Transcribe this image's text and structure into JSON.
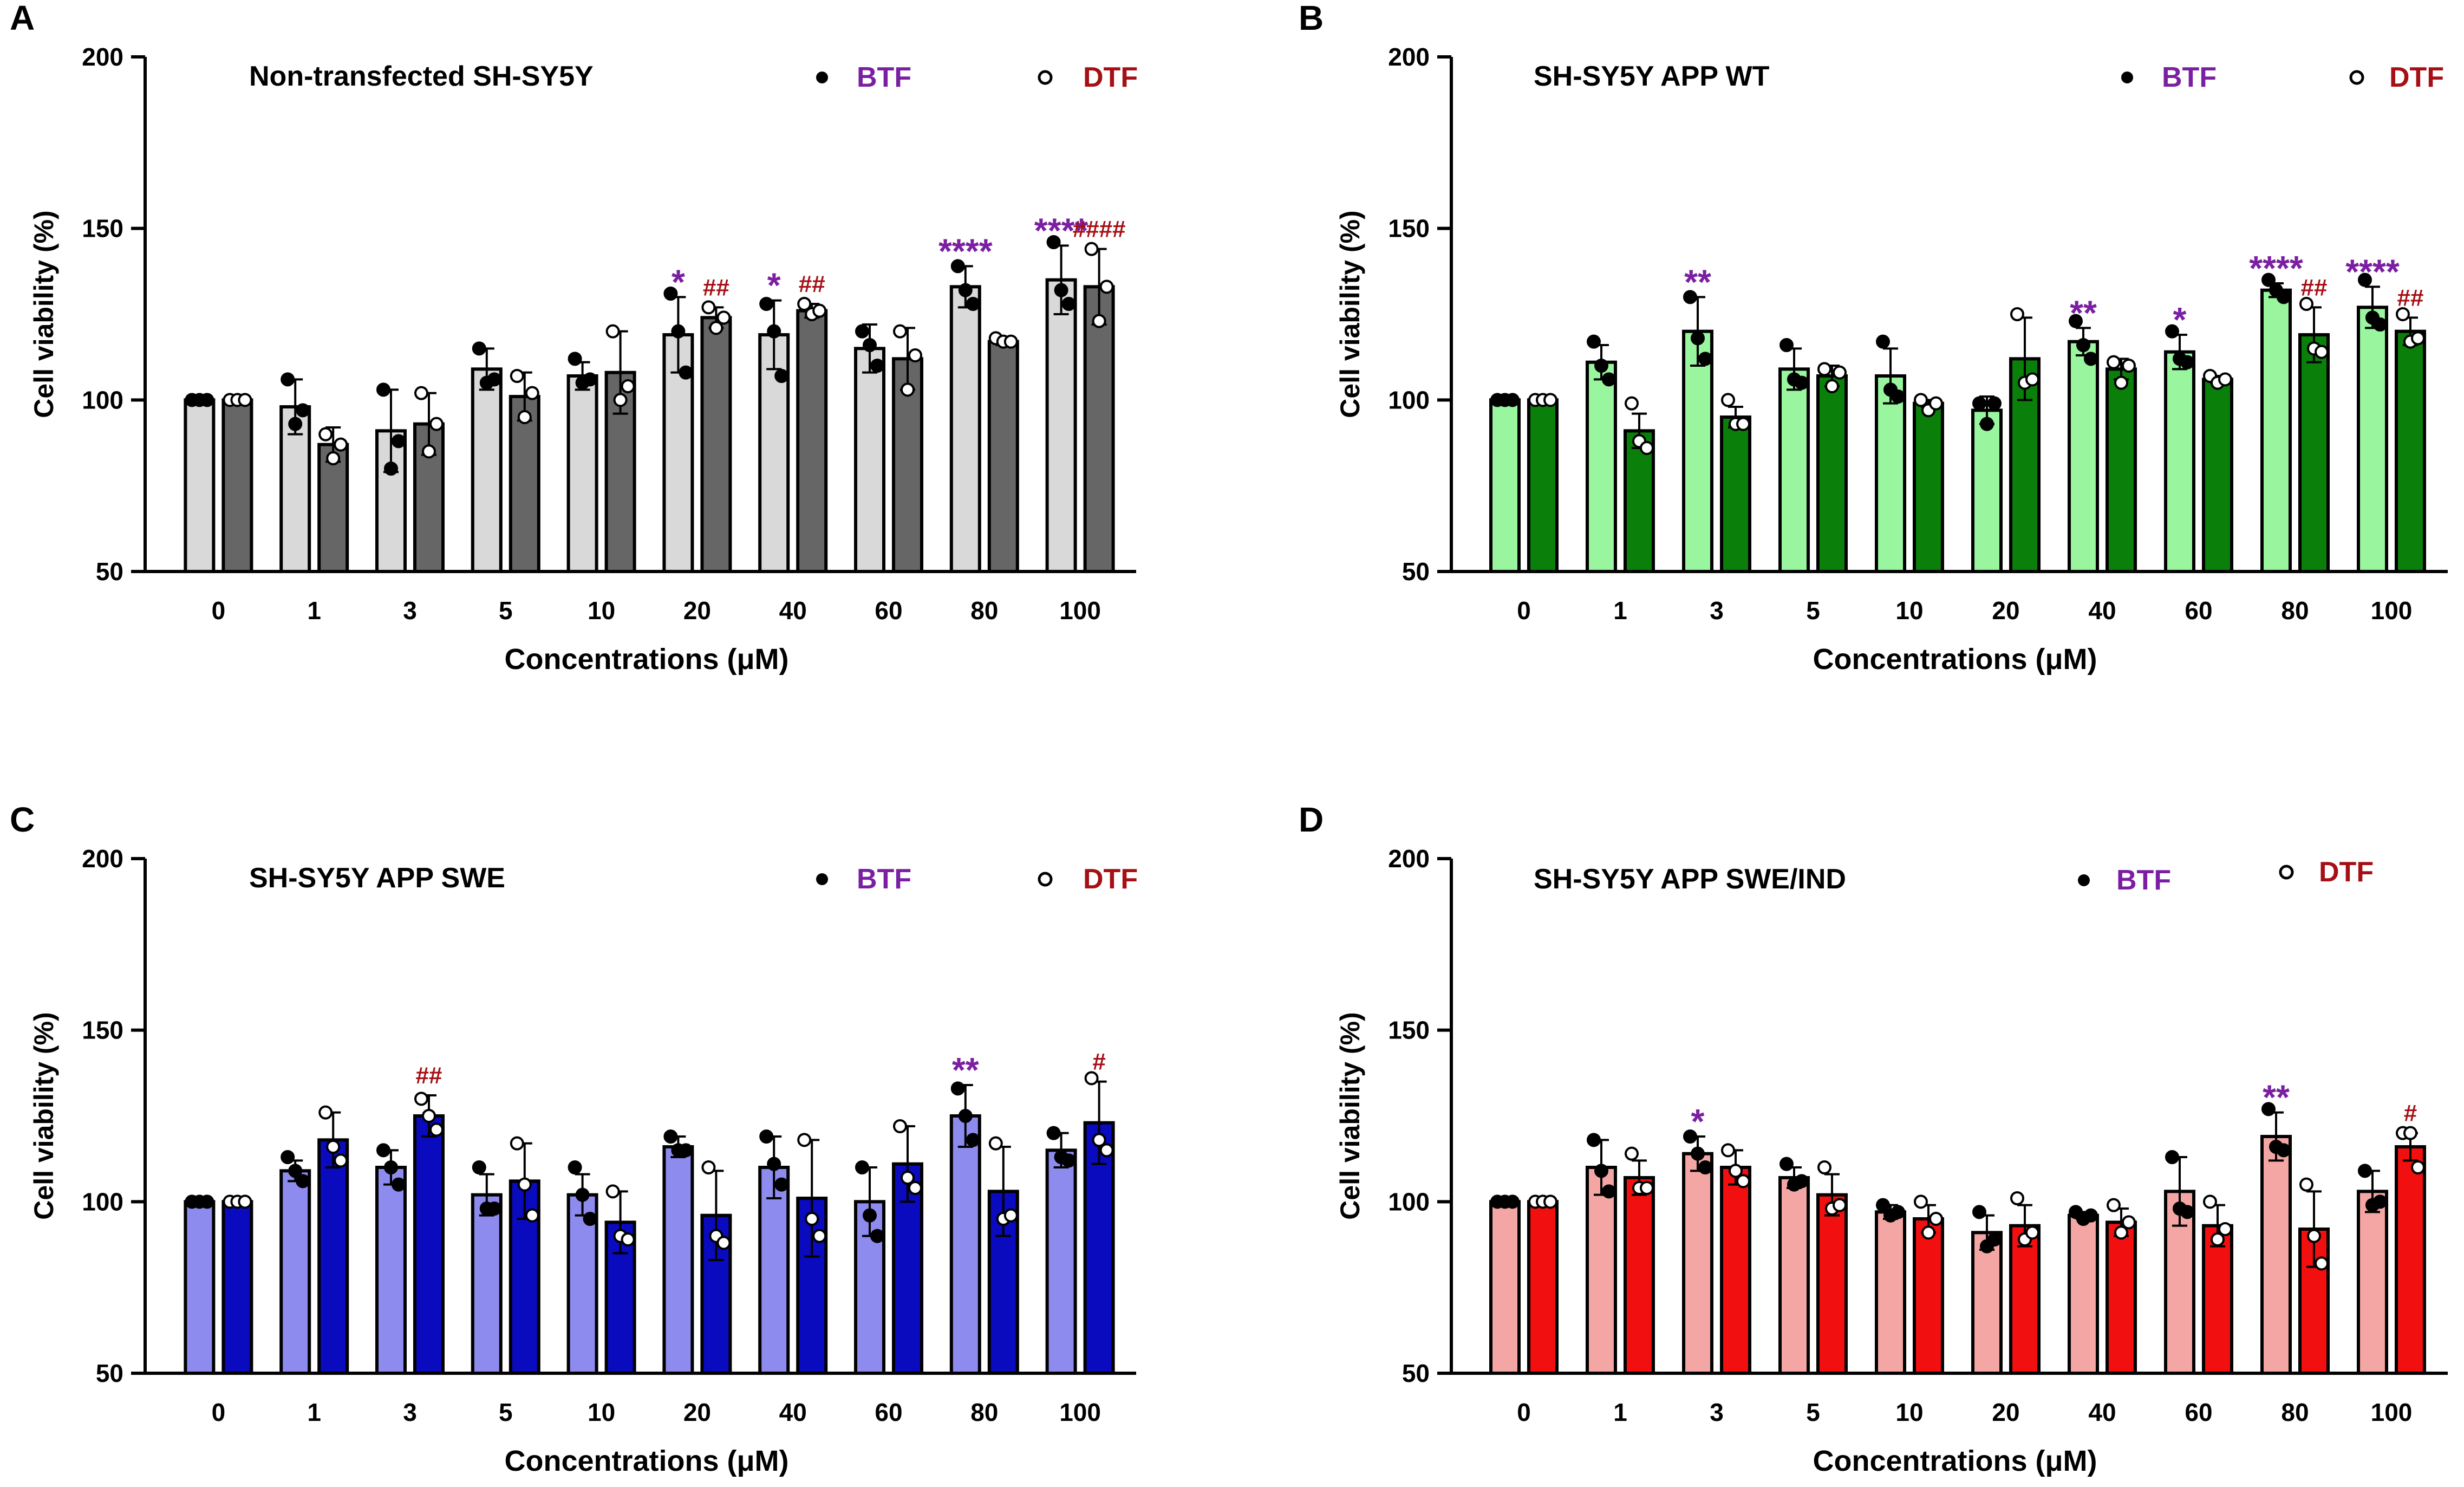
{
  "figure": {
    "yticks": [
      50,
      100,
      150,
      200
    ],
    "legend_labels": [
      "BTF",
      "DTF"
    ],
    "colors": {
      "btf_label": "#7B1FA2",
      "dtf_label": "#A50F15",
      "axis": "#000000"
    }
  },
  "chart_data": [
    {
      "panel": "A",
      "type": "bar",
      "title": "Non-transfected SH-SY5Y",
      "xlabel": "Concentrations (μM)",
      "ylabel": "Cell viability (%)",
      "ylim": [
        50,
        200
      ],
      "categories": [
        "0",
        "1",
        "3",
        "5",
        "10",
        "20",
        "40",
        "60",
        "80",
        "100"
      ],
      "colors": {
        "btf": "#D9D9D9",
        "dtf": "#666666"
      },
      "series": [
        {
          "name": "BTF",
          "values": [
            100,
            98,
            91,
            109,
            107,
            119,
            119,
            115,
            133,
            135
          ],
          "sd": [
            0.5,
            8,
            12,
            6,
            4,
            11,
            10,
            7,
            6,
            10
          ],
          "points": [
            [
              100,
              100,
              100
            ],
            [
              106,
              93,
              97
            ],
            [
              103,
              80,
              88
            ],
            [
              115,
              105,
              106
            ],
            [
              112,
              105,
              106
            ],
            [
              131,
              120,
              108
            ],
            [
              128,
              120,
              107
            ],
            [
              120,
              116,
              110
            ],
            [
              139,
              132,
              128
            ],
            [
              146,
              132,
              128
            ]
          ],
          "annotations": [
            "",
            "",
            "",
            "",
            "",
            "*",
            "*",
            "",
            "****",
            "****"
          ]
        },
        {
          "name": "DTF",
          "values": [
            100,
            87,
            93,
            101,
            108,
            124,
            126,
            112,
            117,
            133
          ],
          "sd": [
            0.5,
            5,
            9,
            7,
            12,
            3,
            2,
            9,
            1,
            11
          ],
          "points": [
            [
              100,
              100,
              100
            ],
            [
              90,
              83,
              87
            ],
            [
              102,
              85,
              93
            ],
            [
              107,
              95,
              102
            ],
            [
              120,
              100,
              104
            ],
            [
              127,
              121,
              124
            ],
            [
              128,
              125,
              126
            ],
            [
              120,
              103,
              113
            ],
            [
              118,
              117,
              117
            ],
            [
              144,
              123,
              133
            ]
          ],
          "annotations": [
            "",
            "",
            "",
            "",
            "",
            "##",
            "##",
            "",
            "",
            "####"
          ]
        }
      ]
    },
    {
      "panel": "B",
      "type": "bar",
      "title": "SH-SY5Y APP WT",
      "xlabel": "Concentrations (μM)",
      "ylabel": "Cell viability (%)",
      "ylim": [
        50,
        200
      ],
      "categories": [
        "0",
        "1",
        "3",
        "5",
        "10",
        "20",
        "40",
        "60",
        "80",
        "100"
      ],
      "colors": {
        "btf": "#99F59E",
        "dtf": "#0A7F0A"
      },
      "series": [
        {
          "name": "BTF",
          "values": [
            100,
            111,
            120,
            109,
            107,
            97,
            117,
            114,
            132,
            127
          ],
          "sd": [
            0.5,
            5,
            10,
            6,
            8,
            4,
            4,
            5,
            2,
            6
          ],
          "points": [
            [
              100,
              100,
              100
            ],
            [
              117,
              110,
              106
            ],
            [
              130,
              118,
              112
            ],
            [
              116,
              106,
              105
            ],
            [
              117,
              103,
              101
            ],
            [
              99,
              93,
              99
            ],
            [
              123,
              116,
              112
            ],
            [
              120,
              112,
              111
            ],
            [
              135,
              132,
              130
            ],
            [
              135,
              124,
              122
            ]
          ],
          "annotations": [
            "",
            "",
            "**",
            "",
            "",
            "",
            "**",
            "*",
            "****",
            "****"
          ]
        },
        {
          "name": "DTF",
          "values": [
            100,
            91,
            95,
            107,
            99,
            112,
            109,
            106,
            119,
            120
          ],
          "sd": [
            0.5,
            5,
            3,
            3,
            1,
            12,
            3,
            1,
            8,
            4
          ],
          "points": [
            [
              100,
              100,
              100
            ],
            [
              99,
              88,
              86
            ],
            [
              100,
              93,
              93
            ],
            [
              109,
              104,
              108
            ],
            [
              100,
              97,
              99
            ],
            [
              125,
              105,
              106
            ],
            [
              111,
              105,
              110
            ],
            [
              107,
              105,
              106
            ],
            [
              128,
              115,
              114
            ],
            [
              125,
              117,
              118
            ]
          ],
          "annotations": [
            "",
            "",
            "",
            "",
            "",
            "",
            "",
            "",
            "##",
            "##"
          ]
        }
      ]
    },
    {
      "panel": "C",
      "type": "bar",
      "title": "SH-SY5Y APP SWE",
      "xlabel": "Concentrations (μM)",
      "ylabel": "Cell viability (%)",
      "ylim": [
        50,
        200
      ],
      "categories": [
        "0",
        "1",
        "3",
        "5",
        "10",
        "20",
        "40",
        "60",
        "80",
        "100"
      ],
      "colors": {
        "btf": "#8E8BEE",
        "dtf": "#0A0ABF"
      },
      "series": [
        {
          "name": "BTF",
          "values": [
            100,
            109,
            110,
            102,
            102,
            116,
            110,
            100,
            125,
            115
          ],
          "sd": [
            0.5,
            3,
            5,
            6,
            6,
            3,
            9,
            10,
            9,
            5
          ],
          "points": [
            [
              100,
              100,
              100
            ],
            [
              113,
              109,
              106
            ],
            [
              115,
              110,
              105
            ],
            [
              110,
              98,
              98
            ],
            [
              110,
              102,
              95
            ],
            [
              119,
              115,
              115
            ],
            [
              119,
              111,
              105
            ],
            [
              110,
              96,
              90
            ],
            [
              133,
              125,
              118
            ],
            [
              120,
              113,
              112
            ]
          ],
          "annotations": [
            "",
            "",
            "",
            "",
            "",
            "",
            "",
            "",
            "**",
            ""
          ]
        },
        {
          "name": "DTF",
          "values": [
            100,
            118,
            125,
            106,
            94,
            96,
            101,
            111,
            103,
            123
          ],
          "sd": [
            0.5,
            8,
            6,
            11,
            9,
            13,
            17,
            11,
            13,
            12
          ],
          "points": [
            [
              100,
              100,
              100
            ],
            [
              126,
              116,
              112
            ],
            [
              130,
              125,
              121
            ],
            [
              117,
              105,
              96
            ],
            [
              103,
              90,
              89
            ],
            [
              110,
              90,
              88
            ],
            [
              118,
              95,
              90
            ],
            [
              122,
              107,
              104
            ],
            [
              117,
              95,
              96
            ],
            [
              136,
              118,
              115
            ]
          ],
          "annotations": [
            "",
            "",
            "##",
            "",
            "",
            "",
            "",
            "",
            "",
            "#"
          ]
        }
      ]
    },
    {
      "panel": "D",
      "type": "bar",
      "title": "SH-SY5Y APP SWE/IND",
      "xlabel": "Concentrations (μM)",
      "ylabel": "Cell viability (%)",
      "ylim": [
        50,
        200
      ],
      "categories": [
        "0",
        "1",
        "3",
        "5",
        "10",
        "20",
        "40",
        "60",
        "80",
        "100"
      ],
      "colors": {
        "btf": "#F4A6A4",
        "dtf": "#F20F0F"
      },
      "series": [
        {
          "name": "BTF",
          "values": [
            100,
            110,
            114,
            107,
            97,
            91,
            96,
            103,
            119,
            103
          ],
          "sd": [
            0.5,
            8,
            5,
            3,
            2,
            5,
            1,
            10,
            7,
            6
          ],
          "points": [
            [
              100,
              100,
              100
            ],
            [
              118,
              109,
              103
            ],
            [
              119,
              114,
              110
            ],
            [
              111,
              105,
              106
            ],
            [
              99,
              96,
              97
            ],
            [
              97,
              87,
              89
            ],
            [
              97,
              95,
              96
            ],
            [
              113,
              98,
              97
            ],
            [
              127,
              116,
              115
            ],
            [
              109,
              99,
              100
            ]
          ],
          "annotations": [
            "",
            "",
            "*",
            "",
            "",
            "",
            "",
            "",
            "**",
            ""
          ]
        },
        {
          "name": "DTF",
          "values": [
            100,
            107,
            110,
            102,
            95,
            93,
            94,
            93,
            92,
            116
          ],
          "sd": [
            0.5,
            5,
            5,
            6,
            4,
            6,
            4,
            6,
            11,
            4
          ],
          "points": [
            [
              100,
              100,
              100
            ],
            [
              114,
              104,
              104
            ],
            [
              115,
              109,
              106
            ],
            [
              110,
              98,
              99
            ],
            [
              100,
              91,
              95
            ],
            [
              101,
              89,
              91
            ],
            [
              99,
              91,
              94
            ],
            [
              100,
              89,
              92
            ],
            [
              105,
              90,
              82
            ],
            [
              120,
              120,
              110
            ]
          ],
          "annotations": [
            "",
            "",
            "",
            "",
            "",
            "",
            "",
            "",
            "",
            "#"
          ]
        }
      ]
    }
  ]
}
